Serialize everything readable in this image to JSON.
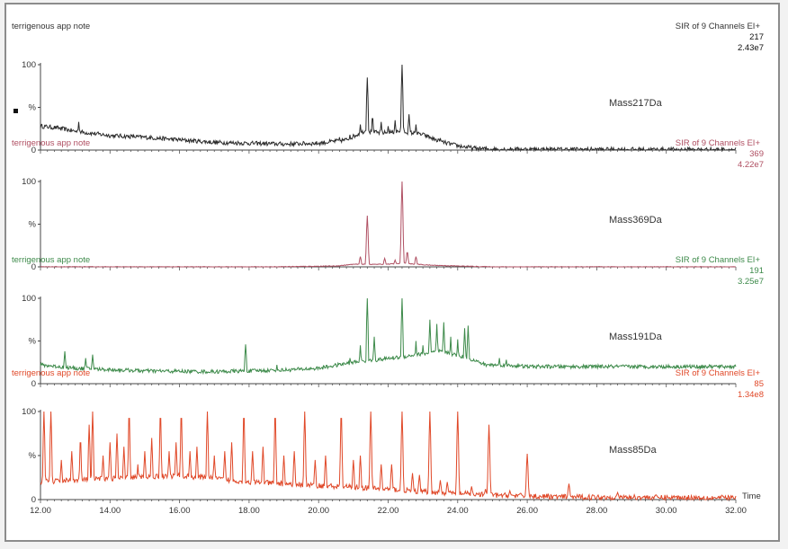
{
  "chart_data": {
    "type": "line",
    "x_range": [
      12.0,
      32.0
    ],
    "x_ticks": [
      "12.00",
      "14.00",
      "16.00",
      "18.00",
      "20.00",
      "22.00",
      "24.00",
      "26.00",
      "28.00",
      "30.00",
      "32.00"
    ],
    "x_axis_label": "Time",
    "y_range": [
      0,
      100
    ],
    "y_tick_labels": {
      "top": "100",
      "middle": "%",
      "bottom": "0"
    },
    "panels": [
      {
        "source": "terrigenous app note",
        "mode": "SIR of 9 Channels EI+",
        "channel": "217",
        "intensity": "2.43e7",
        "label": "Mass217Da",
        "color": "#2a2a2a",
        "baseline": [
          [
            12.0,
            28
          ],
          [
            12.5,
            26
          ],
          [
            13.0,
            22
          ],
          [
            14.0,
            17
          ],
          [
            15.0,
            15
          ],
          [
            16.0,
            12
          ],
          [
            17.0,
            9
          ],
          [
            18.0,
            8
          ],
          [
            19.0,
            7
          ],
          [
            20.0,
            8
          ],
          [
            20.8,
            12
          ],
          [
            21.3,
            22
          ],
          [
            21.8,
            20
          ],
          [
            22.4,
            22
          ],
          [
            23.0,
            18
          ],
          [
            23.5,
            10
          ],
          [
            24.0,
            5
          ],
          [
            24.5,
            2
          ],
          [
            25.0,
            1
          ],
          [
            32.0,
            0.5
          ]
        ],
        "noise": 2.5,
        "peaks": [
          [
            13.1,
            33
          ],
          [
            20.6,
            15
          ],
          [
            20.9,
            18
          ],
          [
            21.2,
            30
          ],
          [
            21.4,
            85
          ],
          [
            21.55,
            40
          ],
          [
            21.8,
            33
          ],
          [
            22.0,
            28
          ],
          [
            22.2,
            35
          ],
          [
            22.4,
            100
          ],
          [
            22.6,
            42
          ],
          [
            22.8,
            30
          ],
          [
            23.0,
            20
          ],
          [
            23.5,
            14
          ]
        ]
      },
      {
        "source": "terrigenous app note",
        "mode": "SIR of 9 Channels EI+",
        "channel": "369",
        "intensity": "4.22e7",
        "label": "Mass369Da",
        "color": "#b05063",
        "baseline": [
          [
            12.0,
            0
          ],
          [
            18.5,
            0
          ],
          [
            20.5,
            1
          ],
          [
            21.0,
            3
          ],
          [
            21.8,
            3
          ],
          [
            22.5,
            4
          ],
          [
            23.2,
            2
          ],
          [
            24.0,
            1
          ],
          [
            25.0,
            0
          ],
          [
            32.0,
            0
          ]
        ],
        "noise": 0.4,
        "peaks": [
          [
            21.2,
            12
          ],
          [
            21.4,
            60
          ],
          [
            21.9,
            10
          ],
          [
            22.2,
            8
          ],
          [
            22.4,
            100
          ],
          [
            22.55,
            18
          ],
          [
            22.8,
            12
          ]
        ]
      },
      {
        "source": "terrigenous app note",
        "mode": "SIR of 9 Channels EI+",
        "channel": "191",
        "intensity": "3.25e7",
        "label": "Mass191Da",
        "color": "#3d8a4a",
        "baseline": [
          [
            12.0,
            22
          ],
          [
            13.0,
            18
          ],
          [
            15.0,
            15
          ],
          [
            17.0,
            14
          ],
          [
            18.0,
            15
          ],
          [
            19.0,
            16
          ],
          [
            20.0,
            18
          ],
          [
            21.0,
            25
          ],
          [
            21.5,
            27
          ],
          [
            22.5,
            32
          ],
          [
            23.5,
            38
          ],
          [
            24.3,
            30
          ],
          [
            24.8,
            22
          ],
          [
            25.3,
            22
          ],
          [
            26.0,
            20
          ],
          [
            32.0,
            20
          ]
        ],
        "noise": 2.2,
        "peaks": [
          [
            12.7,
            38
          ],
          [
            13.3,
            30
          ],
          [
            13.5,
            34
          ],
          [
            17.9,
            46
          ],
          [
            18.8,
            22
          ],
          [
            20.9,
            30
          ],
          [
            21.2,
            45
          ],
          [
            21.4,
            100
          ],
          [
            21.6,
            55
          ],
          [
            22.4,
            100
          ],
          [
            22.8,
            50
          ],
          [
            23.0,
            45
          ],
          [
            23.2,
            75
          ],
          [
            23.4,
            70
          ],
          [
            23.6,
            72
          ],
          [
            23.8,
            55
          ],
          [
            24.0,
            52
          ],
          [
            24.2,
            65
          ],
          [
            24.3,
            68
          ],
          [
            25.2,
            30
          ],
          [
            25.4,
            28
          ]
        ]
      },
      {
        "source": "terrigenous app note",
        "mode": "SIR of 9 Channels EI+",
        "channel": "85",
        "intensity": "1.34e8",
        "label": "Mass85Da",
        "color": "#e04828",
        "baseline": [
          [
            12.0,
            20
          ],
          [
            13.0,
            22
          ],
          [
            14.0,
            24
          ],
          [
            15.0,
            26
          ],
          [
            16.0,
            27
          ],
          [
            17.0,
            24
          ],
          [
            18.0,
            20
          ],
          [
            19.0,
            18
          ],
          [
            20.0,
            16
          ],
          [
            21.0,
            14
          ],
          [
            22.0,
            12
          ],
          [
            23.0,
            9
          ],
          [
            24.0,
            7
          ],
          [
            25.0,
            5
          ],
          [
            26.0,
            4
          ],
          [
            27.0,
            3
          ],
          [
            32.0,
            2
          ]
        ],
        "noise": 3,
        "peaks": [
          [
            12.1,
            100
          ],
          [
            12.3,
            100
          ],
          [
            12.6,
            45
          ],
          [
            12.9,
            55
          ],
          [
            13.15,
            70
          ],
          [
            13.4,
            85
          ],
          [
            13.5,
            100
          ],
          [
            13.8,
            50
          ],
          [
            14.0,
            65
          ],
          [
            14.2,
            75
          ],
          [
            14.4,
            60
          ],
          [
            14.55,
            100
          ],
          [
            14.8,
            40
          ],
          [
            15.0,
            55
          ],
          [
            15.2,
            70
          ],
          [
            15.45,
            100
          ],
          [
            15.7,
            55
          ],
          [
            15.9,
            65
          ],
          [
            16.05,
            100
          ],
          [
            16.3,
            55
          ],
          [
            16.5,
            60
          ],
          [
            16.8,
            100
          ],
          [
            17.0,
            50
          ],
          [
            17.3,
            55
          ],
          [
            17.5,
            65
          ],
          [
            17.85,
            100
          ],
          [
            18.1,
            55
          ],
          [
            18.4,
            60
          ],
          [
            18.75,
            100
          ],
          [
            19.0,
            50
          ],
          [
            19.3,
            55
          ],
          [
            19.6,
            100
          ],
          [
            19.9,
            45
          ],
          [
            20.2,
            50
          ],
          [
            20.65,
            100
          ],
          [
            21.0,
            45
          ],
          [
            21.2,
            50
          ],
          [
            21.5,
            100
          ],
          [
            21.8,
            40
          ],
          [
            22.1,
            40
          ],
          [
            22.4,
            100
          ],
          [
            22.7,
            30
          ],
          [
            22.9,
            28
          ],
          [
            23.2,
            100
          ],
          [
            23.5,
            22
          ],
          [
            23.7,
            20
          ],
          [
            24.0,
            100
          ],
          [
            24.4,
            15
          ],
          [
            24.8,
            12
          ],
          [
            24.9,
            85
          ],
          [
            25.5,
            10
          ],
          [
            26.0,
            52
          ],
          [
            27.2,
            18
          ],
          [
            28.6,
            8
          ]
        ]
      }
    ]
  }
}
